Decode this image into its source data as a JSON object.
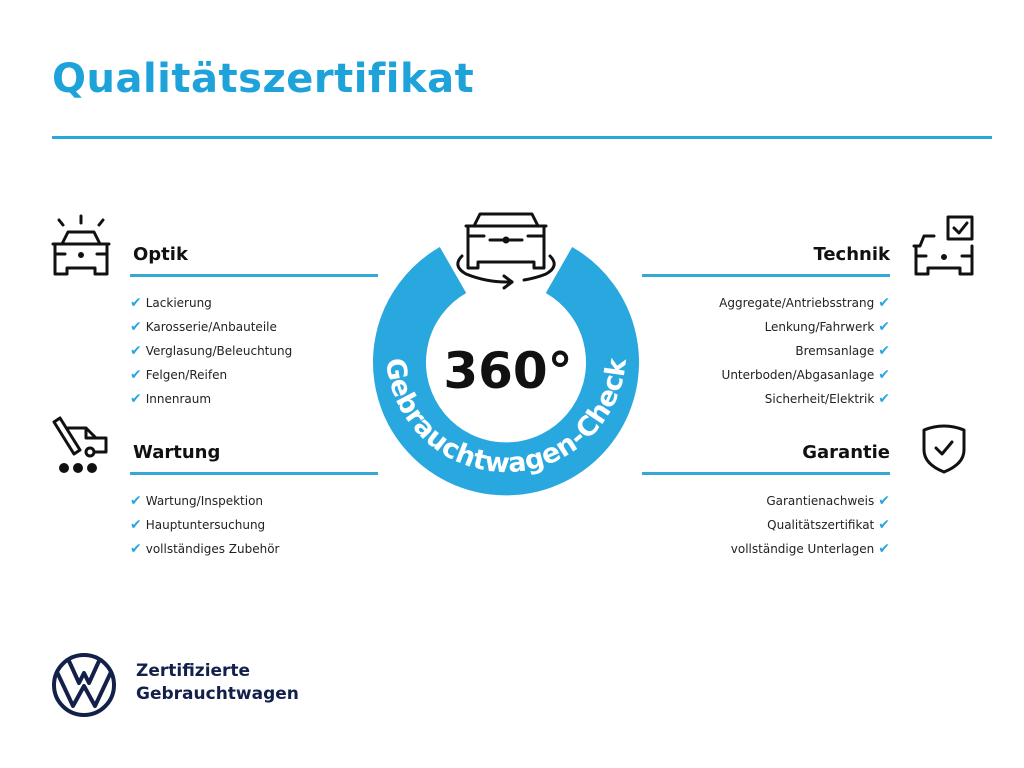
{
  "title": "Qualitätszertifikat",
  "center": {
    "number": "360°",
    "ring_text": "Gebrauchtwagen-Check"
  },
  "sections": {
    "optik": {
      "title": "Optik",
      "items": [
        "Lackierung",
        "Karosserie/Anbauteile",
        "Verglasung/Beleuchtung",
        "Felgen/Reifen",
        "Innenraum"
      ]
    },
    "wartung": {
      "title": "Wartung",
      "items": [
        "Wartung/Inspektion",
        "Hauptuntersuchung",
        "vollständiges Zubehör"
      ]
    },
    "technik": {
      "title": "Technik",
      "items": [
        "Aggregate/Antriebsstrang",
        "Lenkung/Fahrwerk",
        "Bremsanlage",
        "Unterboden/Abgasanlage",
        "Sicherheit/Elektrik"
      ]
    },
    "garantie": {
      "title": "Garantie",
      "items": [
        "Garantienachweis",
        "Qualitätszertifikat",
        "vollständige Unterlagen"
      ]
    }
  },
  "brand": {
    "line1": "Zertifizierte",
    "line2": "Gebrauchtwagen"
  },
  "check_mark": "✔",
  "colors": {
    "accent": "#1ea2da",
    "ring": "#29a8e0",
    "brand": "#13204a"
  }
}
